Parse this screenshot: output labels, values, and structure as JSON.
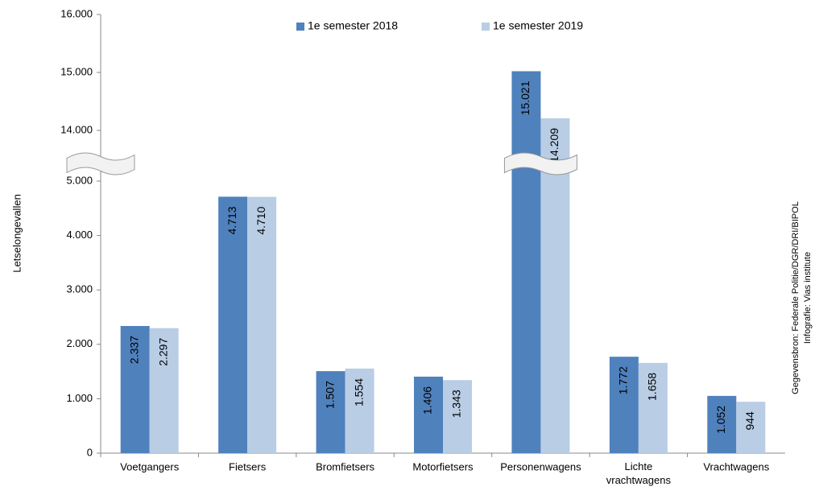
{
  "chart_data": {
    "type": "bar",
    "y_label": "Letselongevallen",
    "source": "Gegevensbron: Federale Politie/DGR/DRI/BIPOL",
    "credit": "Infografie: Vias institute",
    "categories": [
      "Voetgangers",
      "Fietsers",
      "Bromfietsers",
      "Motorfietsers",
      "Personenwagens",
      "Lichte\nvrachtwagens",
      "Vrachtwagens"
    ],
    "series": [
      {
        "name": "1e semester 2018",
        "color": "#4f81bd",
        "values": [
          2337,
          4713,
          1507,
          1406,
          15021,
          1772,
          1052
        ],
        "value_labels": [
          "2.337",
          "4.713",
          "1.507",
          "1.406",
          "15.021",
          "1.772",
          "1.052"
        ]
      },
      {
        "name": "1e semester 2019",
        "color": "#b9cde5",
        "values": [
          2297,
          4710,
          1554,
          1343,
          14209,
          1658,
          944
        ],
        "value_labels": [
          "2.297",
          "4.710",
          "1.554",
          "1.343",
          "14.209",
          "1.658",
          "944"
        ]
      }
    ],
    "ylim": [
      0,
      16000
    ],
    "axis_break": [
      5000,
      14000
    ],
    "yticks": [
      0,
      {
        "value": 1000,
        "label": "1.000"
      },
      {
        "value": 2000,
        "label": "2.000"
      },
      {
        "value": 3000,
        "label": "3.000"
      },
      {
        "value": 4000,
        "label": "4.000"
      },
      {
        "value": 5000,
        "label": "5.000"
      },
      {
        "value": 14000,
        "label": "14.000"
      },
      {
        "value": 15000,
        "label": "15.000"
      },
      {
        "value": 16000,
        "label": "16.000"
      }
    ],
    "legend": "top"
  }
}
